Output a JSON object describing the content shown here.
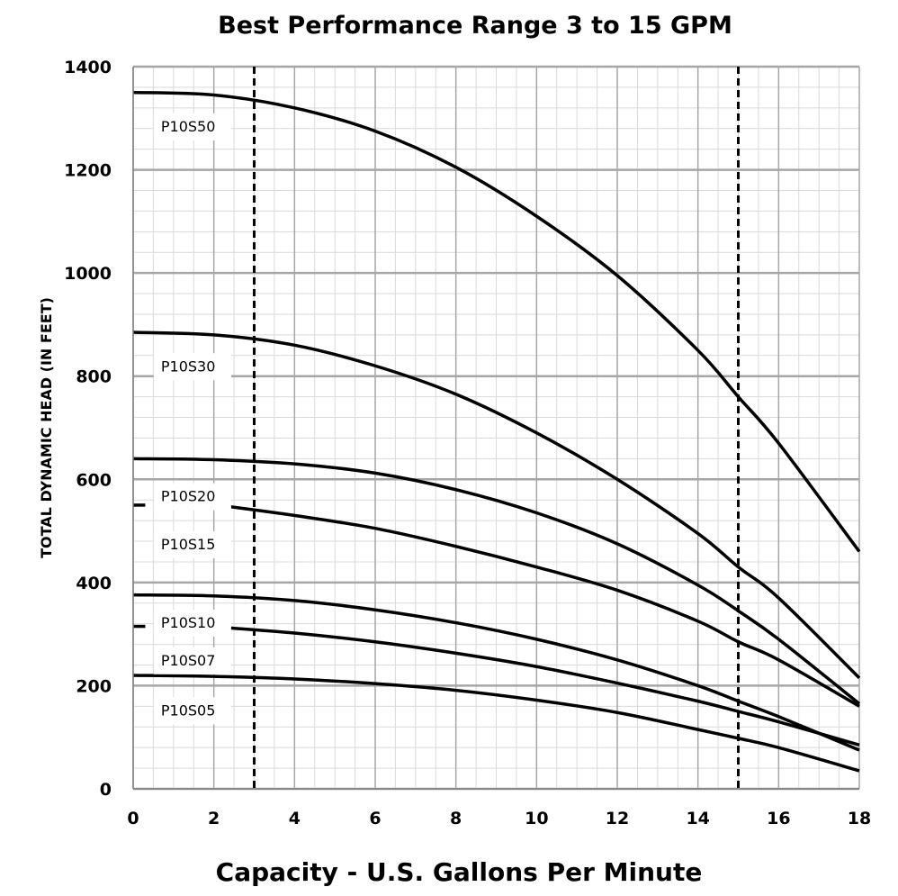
{
  "chart_data": {
    "type": "line",
    "title": "Best Performance Range 3 to 15 GPM",
    "xlabel": "Capacity - U.S. Gallons Per Minute",
    "ylabel": "TOTAL DYNAMIC HEAD (IN FEET)",
    "xlim": [
      0,
      18
    ],
    "ylim": [
      0,
      1400
    ],
    "x_ticks": [
      0,
      2,
      4,
      6,
      8,
      10,
      12,
      14,
      16,
      18
    ],
    "y_ticks": [
      0,
      200,
      400,
      600,
      800,
      1000,
      1200,
      1400
    ],
    "x_tick_labels": [
      "0",
      "2",
      "4",
      "6",
      "8",
      "10",
      "12",
      "14",
      "16",
      "18"
    ],
    "y_tick_labels": [
      "0",
      "200",
      "400",
      "600",
      "800",
      "1000",
      "1200",
      "1400"
    ],
    "grid": true,
    "minor_grid": true,
    "best_performance_range": [
      3,
      15
    ],
    "series": [
      {
        "name": "P10S50",
        "x": [
          0,
          2,
          4,
          6,
          8,
          10,
          12,
          14,
          15,
          16,
          18
        ],
        "y": [
          1350,
          1345,
          1320,
          1275,
          1205,
          1110,
          995,
          850,
          760,
          670,
          460
        ]
      },
      {
        "name": "P10S30",
        "x": [
          0,
          2,
          4,
          6,
          8,
          10,
          12,
          14,
          15,
          16,
          18
        ],
        "y": [
          885,
          880,
          860,
          820,
          765,
          690,
          600,
          495,
          430,
          370,
          215
        ]
      },
      {
        "name": "P10S20",
        "x": [
          0,
          2,
          4,
          6,
          8,
          10,
          12,
          14,
          15,
          16,
          18
        ],
        "y": [
          640,
          638,
          630,
          612,
          580,
          535,
          475,
          395,
          345,
          290,
          165
        ]
      },
      {
        "name": "P10S15",
        "x": [
          2.3,
          4,
          6,
          8,
          10,
          12,
          14,
          15,
          16,
          18
        ],
        "y": [
          548,
          530,
          505,
          470,
          430,
          385,
          325,
          285,
          250,
          160
        ]
      },
      {
        "name": "P10S10",
        "x": [
          0,
          2,
          4,
          6,
          8,
          10,
          12,
          14,
          15,
          16,
          18
        ],
        "y": [
          376,
          374,
          365,
          347,
          322,
          290,
          250,
          200,
          170,
          140,
          75
        ]
      },
      {
        "name": "P10S07",
        "x": [
          2.2,
          4,
          6,
          8,
          10,
          12,
          14,
          15,
          16,
          18
        ],
        "y": [
          313,
          302,
          285,
          263,
          237,
          205,
          170,
          150,
          130,
          85
        ]
      },
      {
        "name": "P10S05",
        "x": [
          0,
          2,
          4,
          6,
          8,
          10,
          12,
          14,
          15,
          16,
          18
        ],
        "y": [
          220,
          218,
          213,
          204,
          191,
          172,
          148,
          115,
          98,
          80,
          35
        ]
      }
    ]
  }
}
